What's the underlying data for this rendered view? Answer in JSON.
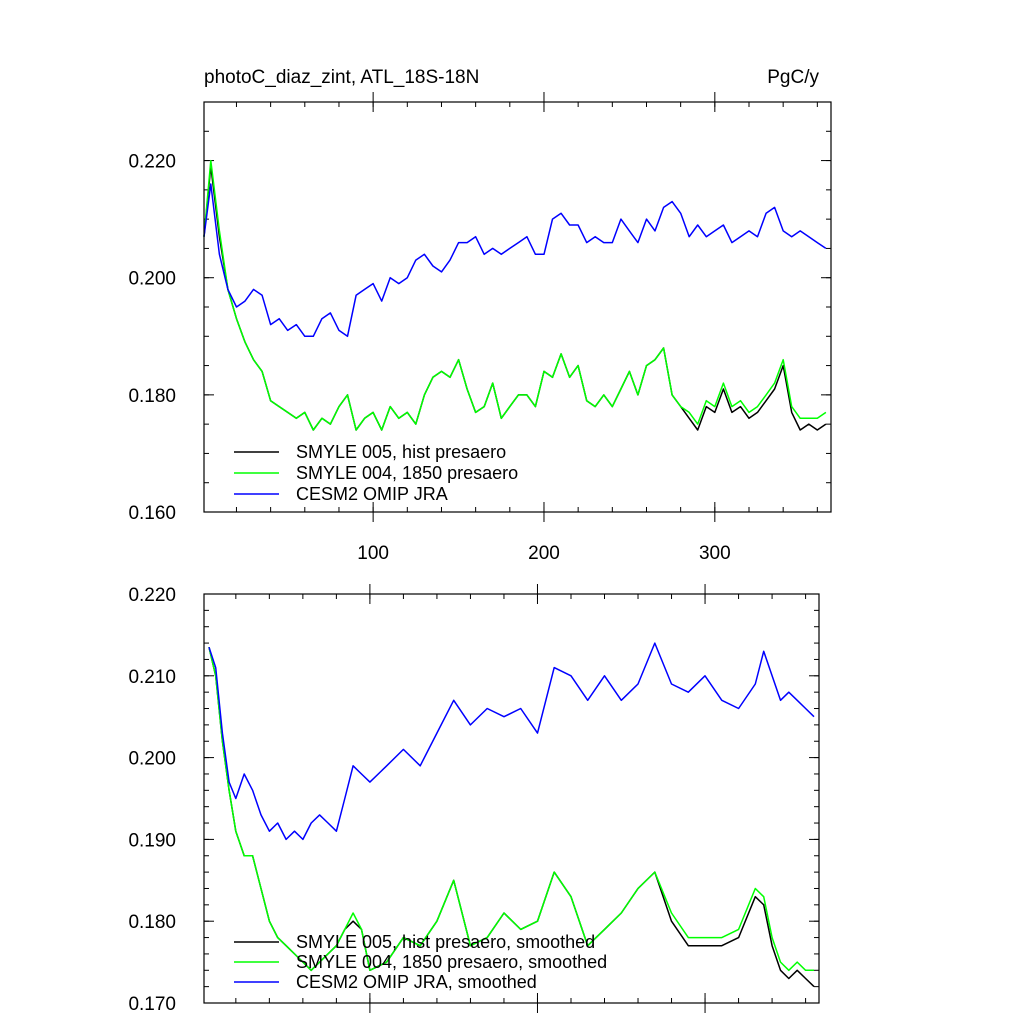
{
  "chart_data": [
    {
      "type": "line",
      "title": "photoC_diaz_zint, ATL_18S-18N",
      "units": "PgC/y",
      "xlabel": "",
      "ylabel": "",
      "xlim": [
        1,
        368
      ],
      "ylim": [
        0.16,
        0.23
      ],
      "xticks": [
        100,
        200,
        300
      ],
      "xtick_labels": [
        "100",
        "200",
        "300"
      ],
      "yticks": [
        0.16,
        0.18,
        0.2,
        0.22
      ],
      "ytick_labels": [
        "0.160",
        "0.180",
        "0.200",
        "0.220"
      ],
      "legend": "bottom-left",
      "series": [
        {
          "name": "SMYLE 005, hist presaero",
          "color": "#000000",
          "x": [
            1,
            5,
            10,
            15,
            20,
            25,
            30,
            35,
            40,
            45,
            50,
            55,
            60,
            65,
            70,
            75,
            80,
            85,
            90,
            95,
            100,
            105,
            110,
            115,
            120,
            125,
            130,
            135,
            140,
            145,
            150,
            155,
            160,
            165,
            170,
            175,
            180,
            185,
            190,
            195,
            200,
            205,
            210,
            215,
            220,
            225,
            230,
            235,
            240,
            245,
            250,
            255,
            260,
            265,
            270,
            275,
            280,
            285,
            290,
            295,
            300,
            305,
            310,
            315,
            320,
            325,
            330,
            335,
            340,
            345,
            350,
            355,
            360,
            365
          ],
          "y": [
            0.207,
            0.219,
            0.207,
            0.198,
            0.193,
            0.189,
            0.186,
            0.184,
            0.179,
            0.178,
            0.177,
            0.176,
            0.177,
            0.174,
            0.176,
            0.175,
            0.178,
            0.18,
            0.174,
            0.176,
            0.177,
            0.174,
            0.178,
            0.176,
            0.177,
            0.175,
            0.18,
            0.183,
            0.184,
            0.183,
            0.186,
            0.181,
            0.177,
            0.178,
            0.182,
            0.176,
            0.178,
            0.18,
            0.18,
            0.178,
            0.184,
            0.183,
            0.187,
            0.183,
            0.185,
            0.179,
            0.178,
            0.18,
            0.178,
            0.181,
            0.184,
            0.18,
            0.185,
            0.186,
            0.188,
            0.18,
            0.178,
            0.176,
            0.174,
            0.178,
            0.177,
            0.181,
            0.177,
            0.178,
            0.176,
            0.177,
            0.179,
            0.181,
            0.185,
            0.177,
            0.174,
            0.175,
            0.174,
            0.175
          ]
        },
        {
          "name": "SMYLE 004, 1850 presaero",
          "color": "#00ff00",
          "x": [
            1,
            5,
            10,
            15,
            20,
            25,
            30,
            35,
            40,
            45,
            50,
            55,
            60,
            65,
            70,
            75,
            80,
            85,
            90,
            95,
            100,
            105,
            110,
            115,
            120,
            125,
            130,
            135,
            140,
            145,
            150,
            155,
            160,
            165,
            170,
            175,
            180,
            185,
            190,
            195,
            200,
            205,
            210,
            215,
            220,
            225,
            230,
            235,
            240,
            245,
            250,
            255,
            260,
            265,
            270,
            275,
            280,
            285,
            290,
            295,
            300,
            305,
            310,
            315,
            320,
            325,
            330,
            335,
            340,
            345,
            350,
            355,
            360,
            365
          ],
          "y": [
            0.207,
            0.22,
            0.208,
            0.198,
            0.193,
            0.189,
            0.186,
            0.184,
            0.179,
            0.178,
            0.177,
            0.176,
            0.177,
            0.174,
            0.176,
            0.175,
            0.178,
            0.18,
            0.174,
            0.176,
            0.177,
            0.174,
            0.178,
            0.176,
            0.177,
            0.175,
            0.18,
            0.183,
            0.184,
            0.183,
            0.186,
            0.181,
            0.177,
            0.178,
            0.182,
            0.176,
            0.178,
            0.18,
            0.18,
            0.178,
            0.184,
            0.183,
            0.187,
            0.183,
            0.185,
            0.179,
            0.178,
            0.18,
            0.178,
            0.181,
            0.184,
            0.18,
            0.185,
            0.186,
            0.188,
            0.18,
            0.178,
            0.177,
            0.175,
            0.179,
            0.178,
            0.182,
            0.178,
            0.179,
            0.177,
            0.178,
            0.18,
            0.182,
            0.186,
            0.178,
            0.176,
            0.176,
            0.176,
            0.177
          ]
        },
        {
          "name": "CESM2 OMIP JRA",
          "color": "#0000ff",
          "x": [
            1,
            5,
            10,
            15,
            20,
            25,
            30,
            35,
            40,
            45,
            50,
            55,
            60,
            65,
            70,
            75,
            80,
            85,
            90,
            95,
            100,
            105,
            110,
            115,
            120,
            125,
            130,
            135,
            140,
            145,
            150,
            155,
            160,
            165,
            170,
            175,
            180,
            185,
            190,
            195,
            200,
            205,
            210,
            215,
            220,
            225,
            230,
            235,
            240,
            245,
            250,
            255,
            260,
            265,
            270,
            275,
            280,
            285,
            290,
            295,
            300,
            305,
            310,
            315,
            320,
            325,
            330,
            335,
            340,
            345,
            350,
            355,
            360,
            365
          ],
          "y": [
            0.207,
            0.216,
            0.204,
            0.198,
            0.195,
            0.196,
            0.198,
            0.197,
            0.192,
            0.193,
            0.191,
            0.192,
            0.19,
            0.19,
            0.193,
            0.194,
            0.191,
            0.19,
            0.197,
            0.198,
            0.199,
            0.196,
            0.2,
            0.199,
            0.2,
            0.203,
            0.204,
            0.202,
            0.201,
            0.203,
            0.206,
            0.206,
            0.207,
            0.204,
            0.205,
            0.204,
            0.205,
            0.206,
            0.207,
            0.204,
            0.204,
            0.21,
            0.211,
            0.209,
            0.209,
            0.206,
            0.207,
            0.206,
            0.206,
            0.21,
            0.208,
            0.206,
            0.21,
            0.208,
            0.212,
            0.213,
            0.211,
            0.207,
            0.209,
            0.207,
            0.208,
            0.209,
            0.206,
            0.207,
            0.208,
            0.207,
            0.211,
            0.212,
            0.208,
            0.207,
            0.208,
            0.207,
            0.206,
            0.205
          ]
        }
      ]
    },
    {
      "type": "line",
      "title": "",
      "xlabel": "",
      "ylabel": "",
      "xlim": [
        1,
        368
      ],
      "ylim": [
        0.17,
        0.22
      ],
      "xticks": [
        100,
        200,
        300
      ],
      "xtick_labels": [
        "",
        "",
        ""
      ],
      "yticks": [
        0.17,
        0.18,
        0.19,
        0.2,
        0.21,
        0.22
      ],
      "ytick_labels": [
        "0.170",
        "0.180",
        "0.190",
        "0.200",
        "0.210",
        "0.220"
      ],
      "legend": "bottom-left",
      "series": [
        {
          "name": "SMYLE 005, hist presaero, smoothed",
          "color": "#000000",
          "x": [
            4,
            8,
            12,
            16,
            20,
            25,
            30,
            35,
            40,
            45,
            50,
            55,
            60,
            65,
            70,
            75,
            80,
            85,
            90,
            95,
            100,
            110,
            120,
            130,
            140,
            150,
            160,
            170,
            180,
            190,
            200,
            210,
            220,
            230,
            240,
            250,
            260,
            270,
            280,
            290,
            300,
            310,
            320,
            330,
            335,
            340,
            345,
            350,
            355,
            360,
            365
          ],
          "y": [
            0.2135,
            0.21,
            0.202,
            0.196,
            0.191,
            0.188,
            0.188,
            0.184,
            0.18,
            0.178,
            0.177,
            0.176,
            0.175,
            0.174,
            0.175,
            0.176,
            0.177,
            0.179,
            0.18,
            0.179,
            0.174,
            0.175,
            0.178,
            0.177,
            0.18,
            0.185,
            0.177,
            0.178,
            0.181,
            0.179,
            0.18,
            0.186,
            0.183,
            0.177,
            0.179,
            0.181,
            0.184,
            0.186,
            0.18,
            0.177,
            0.177,
            0.177,
            0.178,
            0.183,
            0.182,
            0.177,
            0.174,
            0.173,
            0.174,
            0.173,
            0.172
          ]
        },
        {
          "name": "SMYLE 004, 1850 presaero, smoothed",
          "color": "#00ff00",
          "x": [
            4,
            8,
            12,
            16,
            20,
            25,
            30,
            35,
            40,
            45,
            50,
            55,
            60,
            65,
            70,
            75,
            80,
            85,
            90,
            95,
            100,
            110,
            120,
            130,
            140,
            150,
            160,
            170,
            180,
            190,
            200,
            210,
            220,
            230,
            240,
            250,
            260,
            270,
            280,
            290,
            300,
            310,
            320,
            330,
            335,
            340,
            345,
            350,
            355,
            360,
            365
          ],
          "y": [
            0.2135,
            0.21,
            0.202,
            0.196,
            0.191,
            0.188,
            0.188,
            0.184,
            0.18,
            0.178,
            0.177,
            0.176,
            0.175,
            0.174,
            0.175,
            0.176,
            0.177,
            0.179,
            0.181,
            0.179,
            0.174,
            0.175,
            0.178,
            0.177,
            0.18,
            0.185,
            0.177,
            0.178,
            0.181,
            0.179,
            0.18,
            0.186,
            0.183,
            0.177,
            0.179,
            0.181,
            0.184,
            0.186,
            0.181,
            0.178,
            0.178,
            0.178,
            0.179,
            0.184,
            0.183,
            0.178,
            0.175,
            0.174,
            0.175,
            0.174,
            0.174
          ]
        },
        {
          "name": "CESM2 OMIP JRA, smoothed",
          "color": "#0000ff",
          "x": [
            4,
            8,
            12,
            16,
            20,
            25,
            30,
            35,
            40,
            45,
            50,
            55,
            60,
            65,
            70,
            75,
            80,
            85,
            90,
            95,
            100,
            110,
            120,
            130,
            140,
            150,
            160,
            170,
            180,
            190,
            200,
            210,
            220,
            230,
            240,
            250,
            260,
            270,
            280,
            290,
            300,
            310,
            320,
            330,
            335,
            340,
            345,
            350,
            355,
            360,
            365
          ],
          "y": [
            0.2135,
            0.211,
            0.203,
            0.197,
            0.195,
            0.198,
            0.196,
            0.193,
            0.191,
            0.192,
            0.19,
            0.191,
            0.19,
            0.192,
            0.193,
            0.192,
            0.191,
            0.195,
            0.199,
            0.198,
            0.197,
            0.199,
            0.201,
            0.199,
            0.203,
            0.207,
            0.204,
            0.206,
            0.205,
            0.206,
            0.203,
            0.211,
            0.21,
            0.207,
            0.21,
            0.207,
            0.209,
            0.214,
            0.209,
            0.208,
            0.21,
            0.207,
            0.206,
            0.209,
            0.213,
            0.21,
            0.207,
            0.208,
            0.207,
            0.206,
            0.205
          ]
        }
      ]
    }
  ]
}
